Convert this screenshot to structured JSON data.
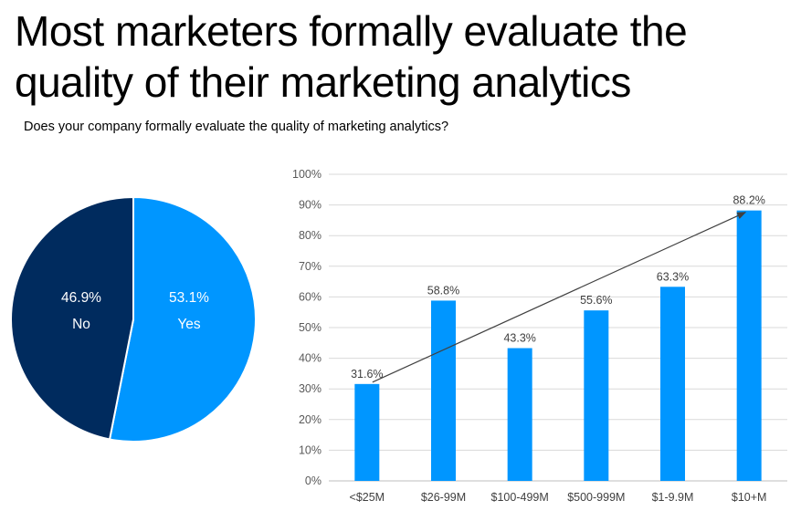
{
  "title": {
    "line1": "Most marketers formally evaluate the",
    "line2": "quality of their marketing analytics"
  },
  "subtitle": "Does your company formally evaluate the quality of marketing analytics?",
  "chart_data": [
    {
      "type": "pie",
      "labels": [
        "No",
        "Yes"
      ],
      "values": [
        46.9,
        53.1
      ],
      "value_labels": [
        "46.9%",
        "53.1%"
      ],
      "colors": [
        "#002B5E",
        "#0096FF"
      ],
      "legend": "none"
    },
    {
      "type": "bar",
      "categories": [
        "<$25M",
        "$26-99M",
        "$100-499M",
        "$500-999M",
        "$1-9.9M",
        "$10+M"
      ],
      "values": [
        31.6,
        58.8,
        43.3,
        55.6,
        63.3,
        88.2
      ],
      "data_labels": [
        "31.6%",
        "58.8%",
        "43.3%",
        "55.6%",
        "63.3%",
        "88.2%"
      ],
      "ylim": [
        0,
        100
      ],
      "yticks": [
        "0%",
        "10%",
        "20%",
        "30%",
        "40%",
        "50%",
        "60%",
        "70%",
        "80%",
        "90%",
        "100%"
      ],
      "grid": true,
      "bar_color": "#0096FF",
      "trend_arrow": {
        "from_category": "<$25M",
        "to_category": "$10+M",
        "color": "#404040"
      }
    }
  ]
}
